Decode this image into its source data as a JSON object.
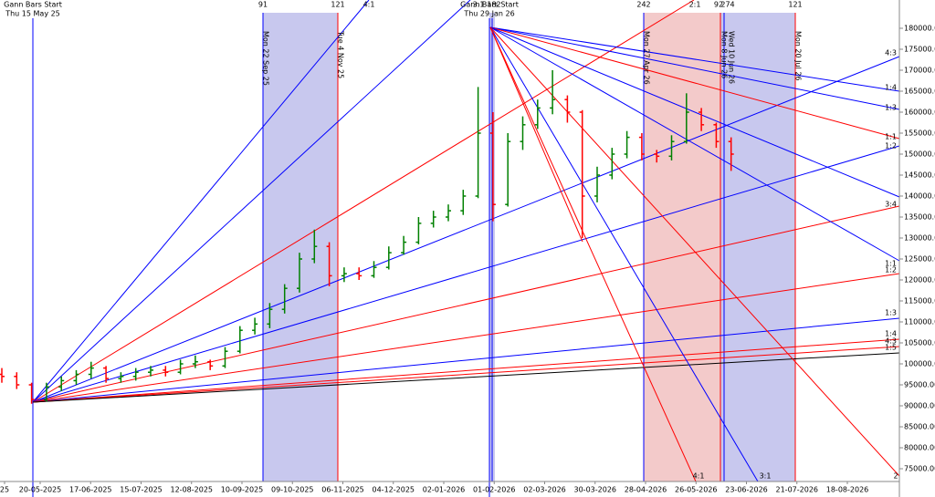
{
  "chart_data": {
    "type": "ohlc",
    "ohlc": [
      [
        97500,
        99000,
        95500,
        97000
      ],
      [
        97000,
        98000,
        94000,
        95000
      ],
      [
        95000,
        95500,
        90500,
        91500
      ],
      [
        91500,
        95500,
        91000,
        94500
      ],
      [
        94500,
        97000,
        93500,
        96000
      ],
      [
        96000,
        98500,
        95000,
        97500
      ],
      [
        97500,
        100500,
        96500,
        99000
      ],
      [
        99000,
        99500,
        95500,
        96500
      ],
      [
        96500,
        98000,
        95500,
        97000
      ],
      [
        97000,
        99000,
        96000,
        98000
      ],
      [
        98000,
        99500,
        97000,
        98500
      ],
      [
        98500,
        99500,
        97000,
        98000
      ],
      [
        98000,
        101000,
        97500,
        100000
      ],
      [
        100000,
        102000,
        99000,
        100500
      ],
      [
        100500,
        101000,
        98500,
        99500
      ],
      [
        99500,
        104000,
        99000,
        103000
      ],
      [
        103000,
        109000,
        102500,
        108000
      ],
      [
        108000,
        111000,
        107000,
        109500
      ],
      [
        109500,
        114500,
        108500,
        113000
      ],
      [
        113000,
        119000,
        112000,
        118000
      ],
      [
        118000,
        126500,
        117000,
        125000
      ],
      [
        125000,
        132000,
        124000,
        128000
      ],
      [
        128000,
        129000,
        118500,
        121000
      ],
      [
        121000,
        123000,
        119500,
        121500
      ],
      [
        121500,
        123000,
        120000,
        121000
      ],
      [
        121000,
        124500,
        120500,
        123000
      ],
      [
        123000,
        128000,
        122500,
        126500
      ],
      [
        126500,
        130500,
        126000,
        129000
      ],
      [
        129000,
        135000,
        128500,
        133500
      ],
      [
        133500,
        136500,
        132500,
        135000
      ],
      [
        135000,
        138000,
        134000,
        136500
      ],
      [
        136500,
        141500,
        135500,
        140000
      ],
      [
        140000,
        166000,
        139500,
        155000
      ],
      [
        155000,
        160000,
        134000,
        138000
      ],
      [
        138000,
        155000,
        137500,
        153000
      ],
      [
        153000,
        159000,
        151000,
        157000
      ],
      [
        157000,
        163000,
        156000,
        161000
      ],
      [
        161000,
        170000,
        159500,
        163000
      ],
      [
        163000,
        164000,
        157500,
        160000
      ],
      [
        160000,
        160500,
        130000,
        140000
      ],
      [
        140000,
        147000,
        138500,
        145000
      ],
      [
        145000,
        151500,
        144000,
        150000
      ],
      [
        150000,
        155500,
        149000,
        154000
      ],
      [
        154000,
        155000,
        148500,
        150000
      ],
      [
        150000,
        151000,
        148000,
        149500
      ],
      [
        149500,
        154500,
        148500,
        153000
      ],
      [
        153000,
        164500,
        152500,
        160000
      ],
      [
        160000,
        161000,
        155500,
        157000
      ],
      [
        157000,
        157500,
        151500,
        153000
      ],
      [
        153000,
        154000,
        146000,
        150000
      ]
    ],
    "up_color": "#008000",
    "down_color": "#ff0000",
    "ylim": [
      70000,
      185000
    ],
    "yticks": [
      {
        "value": 75000,
        "label": "75000.00"
      },
      {
        "value": 80000,
        "label": "80000.00"
      },
      {
        "value": 85000,
        "label": "85000.00"
      },
      {
        "value": 90000,
        "label": "90000.00"
      },
      {
        "value": 95000,
        "label": "95000.00"
      },
      {
        "value": 100000,
        "label": "100000.00"
      },
      {
        "value": 105000,
        "label": "105000.00"
      },
      {
        "value": 110000,
        "label": "110000.00"
      },
      {
        "value": 115000,
        "label": "115000.00"
      },
      {
        "value": 120000,
        "label": "120000.00"
      },
      {
        "value": 125000,
        "label": "125000.00"
      },
      {
        "value": 130000,
        "label": "130000.00"
      },
      {
        "value": 135000,
        "label": "135000.00"
      },
      {
        "value": 140000,
        "label": "140000.00"
      },
      {
        "value": 145000,
        "label": "145000.00"
      },
      {
        "value": 150000,
        "label": "150000.00"
      },
      {
        "value": 155000,
        "label": "155000.00"
      },
      {
        "value": 160000,
        "label": "160000.00"
      },
      {
        "value": 165000,
        "label": "165000.00"
      },
      {
        "value": 170000,
        "label": "170000.00"
      },
      {
        "value": 175000,
        "label": "175000.00"
      },
      {
        "value": 180000,
        "label": "180000.00"
      }
    ],
    "x_labels": [
      "25",
      "20-05-2025",
      "17-06-2025",
      "15-07-2025",
      "12-08-2025",
      "10-09-2025",
      "09-10-2025",
      "06-11-2025",
      "04-12-2025",
      "02-01-2026",
      "01-02-2026",
      "02-03-2026",
      "30-03-2026",
      "28-04-2026",
      "26-05-2026",
      "23-06-2026",
      "21-07-2026",
      "18-08-2026"
    ]
  },
  "annotations": {
    "start_markers": [
      {
        "title": "Gann Bars Start",
        "date": "Thu 15 May 25"
      },
      {
        "title": "Gann Bars Start",
        "date": "Thu 29 Jan 26"
      }
    ],
    "bar_counts": [
      "91",
      "121",
      "242",
      "92",
      "274",
      "121"
    ],
    "top_ratios": [
      "4:1",
      "3:1",
      "182",
      "2:1"
    ],
    "date_markers": [
      "Mon 22 Sep 25",
      "Tue 4 Nov 25",
      "Mon 27 Apr 26",
      "Wed 10 Jun 26",
      "Mon 8 Jun 26",
      "Mon 20 Jul 26"
    ],
    "right_ratios": [
      "4:3",
      "1:4",
      "1:3",
      "1:1",
      "1:2",
      "3:4",
      "1:1",
      "1:2",
      "1:3",
      "1:4",
      "4:3",
      "1:5"
    ],
    "bottom_ratios": [
      "4:1",
      "3:1",
      "2"
    ]
  }
}
